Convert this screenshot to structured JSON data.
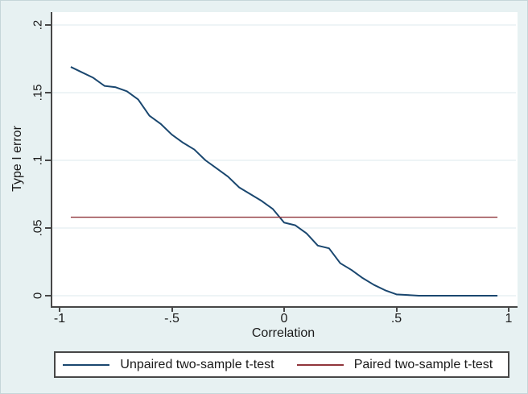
{
  "figure": {
    "colors": {
      "background": "#e7f1f2",
      "plot_background": "#ffffff",
      "grid": "#dde9ec",
      "axis": "#474747",
      "text": "#1a1a1a"
    }
  },
  "chart_data": {
    "type": "line",
    "title": "",
    "xlabel": "Correlation",
    "ylabel": "Type I error",
    "xlim": [
      -1,
      1
    ],
    "ylim": [
      0,
      0.2
    ],
    "grid": true,
    "gridlines": "horizontal",
    "legend_position": "bottom",
    "x_tick_values": [
      -1,
      -0.5,
      0,
      0.5,
      1
    ],
    "x_ticks": [
      "-1",
      "-.5",
      "0",
      ".5",
      "1"
    ],
    "y_tick_values": [
      0,
      0.05,
      0.1,
      0.15,
      0.2
    ],
    "y_ticks": [
      "0",
      ".05",
      ".1",
      ".15",
      ".2"
    ],
    "series": [
      {
        "name": "Unpaired two-sample t-test",
        "color": "#1a476f",
        "width": 2,
        "x": [
          -0.95,
          -0.9,
          -0.85,
          -0.8,
          -0.75,
          -0.7,
          -0.65,
          -0.6,
          -0.55,
          -0.5,
          -0.45,
          -0.4,
          -0.35,
          -0.3,
          -0.25,
          -0.2,
          -0.15,
          -0.1,
          -0.05,
          0,
          0.05,
          0.1,
          0.15,
          0.2,
          0.25,
          0.3,
          0.35,
          0.4,
          0.45,
          0.5,
          0.55,
          0.6,
          0.65,
          0.7,
          0.75,
          0.8,
          0.85,
          0.9,
          0.95
        ],
        "y": [
          0.169,
          0.165,
          0.161,
          0.155,
          0.154,
          0.151,
          0.145,
          0.133,
          0.127,
          0.119,
          0.113,
          0.108,
          0.1,
          0.094,
          0.088,
          0.08,
          0.075,
          0.07,
          0.064,
          0.054,
          0.052,
          0.046,
          0.037,
          0.035,
          0.024,
          0.019,
          0.013,
          0.008,
          0.004,
          0.001,
          0.0005,
          0,
          0,
          0,
          0,
          0,
          0,
          0,
          0
        ]
      },
      {
        "name": "Paired two-sample t-test",
        "color": "#90353b",
        "width": 1.4,
        "x": [
          -0.95,
          0.95
        ],
        "y": [
          0.058,
          0.058
        ]
      }
    ]
  }
}
